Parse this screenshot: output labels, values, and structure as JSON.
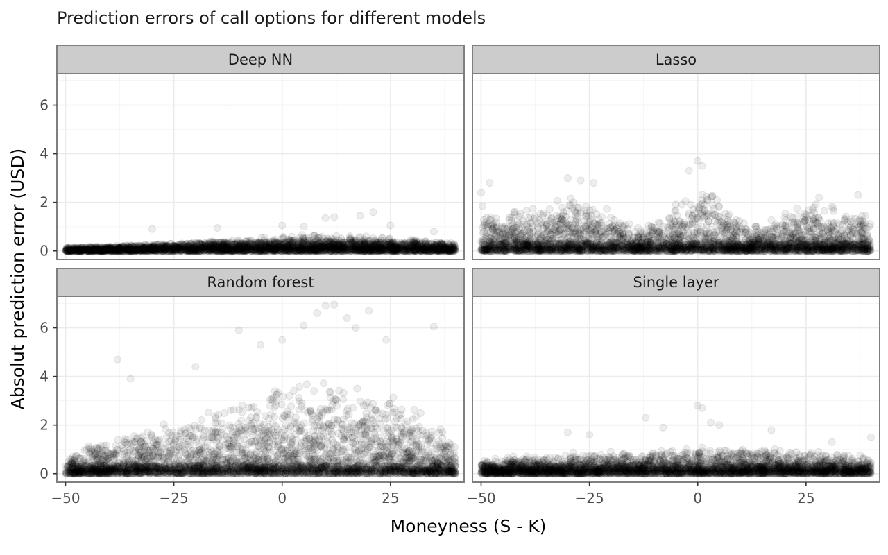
{
  "chart_data": {
    "type": "scatter",
    "title": "Prediction errors of call options for different models",
    "xlabel": "Moneyness (S - K)",
    "ylabel": "Absolut prediction error (USD)",
    "xlim": [
      -52,
      42
    ],
    "ylim": [
      -0.35,
      7.3
    ],
    "x_ticks": [
      -50,
      -25,
      0,
      25
    ],
    "y_ticks": [
      0,
      2,
      4,
      6
    ],
    "x_tick_labels": [
      "−50",
      "−25",
      "0",
      "25"
    ],
    "y_tick_labels": [
      "0",
      "2",
      "4",
      "6"
    ],
    "grid": true,
    "point_color": "#000000",
    "point_alpha": 0.07,
    "facets": [
      {
        "name": "Deep NN",
        "x_range": [
          -50,
          40
        ],
        "profile": [
          [
            -50,
            0.15
          ],
          [
            -40,
            0.2
          ],
          [
            -25,
            0.3
          ],
          [
            -10,
            0.45
          ],
          [
            0,
            0.6
          ],
          [
            10,
            0.65
          ],
          [
            20,
            0.55
          ],
          [
            30,
            0.45
          ],
          [
            40,
            0.3
          ]
        ],
        "sample_points": [
          [
            -30,
            0.9
          ],
          [
            -15,
            0.95
          ],
          [
            0,
            1.05
          ],
          [
            5,
            1.0
          ],
          [
            10,
            1.35
          ],
          [
            12,
            1.4
          ],
          [
            18,
            1.45
          ],
          [
            21,
            1.6
          ],
          [
            25,
            1.05
          ],
          [
            35,
            0.8
          ]
        ]
      },
      {
        "name": "Lasso",
        "x_range": [
          -50,
          40
        ],
        "profile": [
          [
            -50,
            1.8
          ],
          [
            -45,
            1.5
          ],
          [
            -35,
            1.8
          ],
          [
            -28,
            2.3
          ],
          [
            -20,
            1.6
          ],
          [
            -12,
            0.9
          ],
          [
            -8,
            1.3
          ],
          [
            0,
            2.6
          ],
          [
            5,
            2.3
          ],
          [
            10,
            1.2
          ],
          [
            15,
            1.2
          ],
          [
            20,
            1.8
          ],
          [
            27,
            2.0
          ],
          [
            33,
            1.6
          ],
          [
            40,
            1.5
          ]
        ],
        "sample_points": [
          [
            -50,
            2.4
          ],
          [
            -48,
            2.8
          ],
          [
            -30,
            3.0
          ],
          [
            -27,
            2.9
          ],
          [
            -24,
            2.8
          ],
          [
            0,
            3.7
          ],
          [
            1,
            3.5
          ],
          [
            -2,
            3.3
          ],
          [
            28,
            2.2
          ],
          [
            37,
            2.3
          ]
        ]
      },
      {
        "name": "Random forest",
        "x_range": [
          -50,
          40
        ],
        "profile": [
          [
            -50,
            0.5
          ],
          [
            -45,
            1.2
          ],
          [
            -35,
            1.6
          ],
          [
            -25,
            2.0
          ],
          [
            -15,
            2.6
          ],
          [
            -5,
            3.1
          ],
          [
            5,
            3.6
          ],
          [
            15,
            3.6
          ],
          [
            25,
            3.0
          ],
          [
            35,
            2.0
          ],
          [
            40,
            1.3
          ]
        ],
        "sample_points": [
          [
            -38,
            4.7
          ],
          [
            -35,
            3.9
          ],
          [
            -10,
            5.9
          ],
          [
            -5,
            5.3
          ],
          [
            0,
            5.5
          ],
          [
            5,
            6.1
          ],
          [
            8,
            6.6
          ],
          [
            10,
            6.9
          ],
          [
            12,
            6.95
          ],
          [
            15,
            6.4
          ],
          [
            17,
            6.0
          ],
          [
            20,
            6.7
          ],
          [
            24,
            5.5
          ],
          [
            35,
            6.05
          ],
          [
            -20,
            4.4
          ]
        ]
      },
      {
        "name": "Single layer",
        "x_range": [
          -50,
          40
        ],
        "profile": [
          [
            -50,
            0.6
          ],
          [
            -40,
            0.7
          ],
          [
            -30,
            0.8
          ],
          [
            -15,
            0.9
          ],
          [
            0,
            1.1
          ],
          [
            10,
            1.0
          ],
          [
            20,
            0.95
          ],
          [
            30,
            0.85
          ],
          [
            40,
            0.7
          ]
        ],
        "sample_points": [
          [
            -30,
            1.7
          ],
          [
            -25,
            1.6
          ],
          [
            -12,
            2.3
          ],
          [
            -8,
            1.9
          ],
          [
            0,
            2.8
          ],
          [
            1,
            2.7
          ],
          [
            3,
            2.1
          ],
          [
            5,
            2.0
          ],
          [
            17,
            1.8
          ],
          [
            31,
            1.3
          ],
          [
            40,
            1.5
          ]
        ]
      }
    ]
  }
}
